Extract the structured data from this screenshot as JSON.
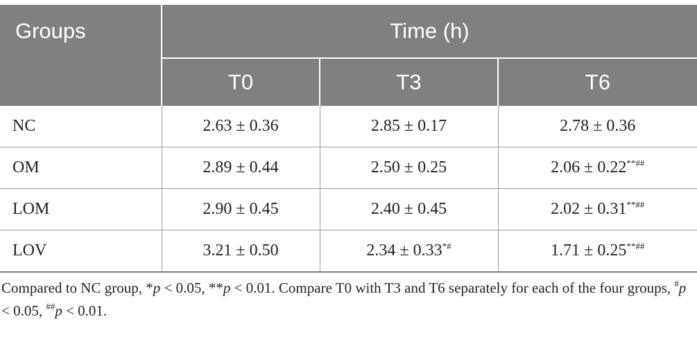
{
  "header": {
    "groups": "Groups",
    "time": "Time (h)",
    "t0": "T0",
    "t3": "T3",
    "t6": "T6"
  },
  "rows": [
    {
      "group": "NC",
      "t0": "2.63 ± 0.36",
      "t3": "2.85 ± 0.17",
      "t3_mark": "",
      "t6": "2.78 ± 0.36",
      "t6_mark": ""
    },
    {
      "group": "OM",
      "t0": "2.89 ± 0.44",
      "t3": "2.50 ± 0.25",
      "t3_mark": "",
      "t6": "2.06 ± 0.22",
      "t6_mark": "**##"
    },
    {
      "group": "LOM",
      "t0": "2.90 ± 0.45",
      "t3": "2.40 ± 0.45",
      "t3_mark": "",
      "t6": "2.02 ± 0.31",
      "t6_mark": "**##"
    },
    {
      "group": "LOV",
      "t0": "3.21 ± 0.50",
      "t3": "2.34 ± 0.33",
      "t3_mark": "*#",
      "t6": "1.71 ± 0.25",
      "t6_mark": "**##"
    }
  ],
  "note": {
    "part1": "Compared to NC group, *",
    "p1": "p",
    "part2": " < 0.05, **",
    "p2": "p",
    "part3": " < 0.01. Compare T0 with T3 and T6 separately for each of the four groups, ",
    "sup1": "#",
    "p3": "p",
    "part4": " < 0.05, ",
    "sup2": "##",
    "p4": "p",
    "part5": " < 0.01."
  }
}
